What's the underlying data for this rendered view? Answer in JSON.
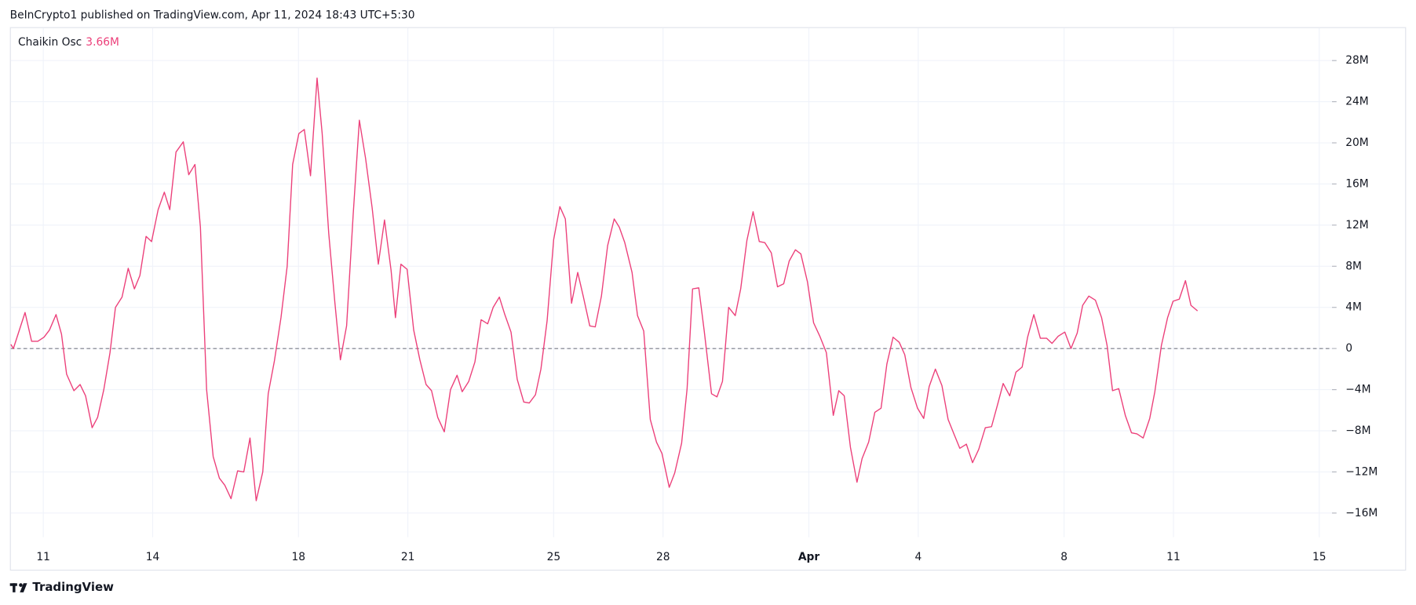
{
  "header": "BeInCrypto1 published on TradingView.com, Apr 11, 2024 18:43 UTC+5:30",
  "brand": "TradingView",
  "chart_data": {
    "type": "line",
    "series": [
      {
        "name": "Chaikin Osc",
        "color": "#ec407a",
        "legend_value_label": "3.66M",
        "values": [
          0.4,
          0,
          3.5,
          0.7,
          0.7,
          1.1,
          1.8,
          3.3,
          1.4,
          -2.5,
          -4.1,
          -3.5,
          -4.6,
          -7.7,
          -6.7,
          -4.0,
          -0.4,
          4.0,
          5.0,
          7.8,
          5.8,
          7.1,
          10.9,
          10.4,
          13.5,
          15.2,
          13.5,
          19.1,
          20.1,
          16.9,
          17.9,
          11.8,
          -4.0,
          -10.5,
          -12.6,
          -13.3,
          -14.6,
          -11.9,
          -12.0,
          -8.7,
          -14.8,
          -12.0,
          -4.4,
          -1.2,
          3.0,
          8.0,
          17.9,
          20.9,
          21.3,
          16.8,
          26.3,
          20.9,
          11.2,
          4.4,
          -1.1,
          2.2,
          13.0,
          22.2,
          18.5,
          13.7,
          8.2,
          12.5,
          7.6,
          3.0,
          8.2,
          7.7,
          1.8,
          -1.1,
          -3.5,
          -4.1,
          -6.7,
          -8.1,
          -4.0,
          -2.6,
          -4.2,
          -3.2,
          -1.3,
          2.8,
          2.4,
          4.0,
          5.0,
          3.3,
          1.6,
          -3.0,
          -5.2,
          -5.3,
          -4.5,
          -2.0,
          2.7,
          10.6,
          13.8,
          12.6,
          4.4,
          7.4,
          5.1,
          2.2,
          2.1,
          5.1,
          10.0,
          12.6,
          11.8,
          10.3,
          7.4,
          3.2,
          1.7,
          -6.9,
          -9.1,
          -10.2,
          -13.5,
          -12.1,
          -9.2,
          -3.9,
          5.8,
          5.9,
          1.7,
          -4.4,
          -4.7,
          -3.2,
          4.0,
          3.2,
          5.8,
          10.5,
          13.3,
          10.4,
          10.3,
          9.3,
          6.0,
          6.3,
          8.5,
          9.6,
          9.2,
          6.5,
          2.5,
          1.2,
          -0.4,
          -6.5,
          -4.1,
          -4.6,
          -9.6,
          -13.0,
          -10.7,
          -9.1,
          -6.2,
          -5.8,
          -1.5,
          1.1,
          0.6,
          -0.6,
          -3.8,
          -5.8,
          -6.8,
          -3.7,
          -2.0,
          -3.6,
          -6.9,
          -8.4,
          -9.7,
          -9.3,
          -11.1,
          -9.8,
          -7.7,
          -7.6,
          -5.4,
          -3.4,
          -4.6,
          -2.3,
          -1.8,
          1.1,
          3.3,
          1.0,
          1.0,
          0.5,
          1.2,
          1.6,
          0,
          1.5,
          4.2,
          5.1,
          4.7,
          3.0,
          0.3,
          -4.1,
          -3.9,
          -6.5,
          -8.2,
          -8.3,
          -8.7,
          -6.8,
          -4.2,
          0.3,
          3.0,
          4.6,
          4.8,
          6.6,
          4.2,
          3.66
        ]
      }
    ],
    "x": [
      -0.89,
      -0.82,
      -0.5,
      -0.32,
      -0.15,
      0.02,
      0.17,
      0.35,
      0.5,
      0.64,
      0.84,
      1.01,
      1.16,
      1.34,
      1.49,
      1.66,
      1.83,
      1.98,
      2.16,
      2.33,
      2.5,
      2.65,
      2.82,
      2.97,
      3.15,
      3.32,
      3.47,
      3.64,
      3.84,
      3.99,
      4.16,
      4.31,
      4.48,
      4.66,
      4.83,
      4.98,
      5.15,
      5.33,
      5.5,
      5.67,
      5.84,
      6.02,
      6.17,
      6.34,
      6.52,
      6.69,
      6.84,
      7.01,
      7.16,
      7.33,
      7.51,
      7.65,
      7.83,
      8.0,
      8.15,
      8.32,
      8.5,
      8.67,
      8.84,
      9.02,
      9.19,
      9.36,
      9.54,
      9.66,
      9.81,
      9.98,
      10.16,
      10.33,
      10.5,
      10.65,
      10.82,
      11.0,
      11.17,
      11.35,
      11.49,
      11.67,
      11.84,
      12.01,
      12.19,
      12.34,
      12.51,
      12.66,
      12.83,
      13.0,
      13.18,
      13.33,
      13.5,
      13.65,
      13.82,
      14.0,
      14.17,
      14.32,
      14.49,
      14.66,
      14.81,
      14.99,
      15.14,
      15.31,
      15.48,
      15.66,
      15.8,
      15.95,
      16.15,
      16.3,
      16.47,
      16.65,
      16.82,
      16.97,
      17.17,
      17.32,
      17.51,
      17.66,
      17.81,
      17.98,
      18.13,
      18.33,
      18.48,
      18.63,
      18.8,
      18.98,
      19.13,
      19.3,
      19.47,
      19.64,
      19.79,
      19.97,
      20.14,
      20.31,
      20.46,
      20.63,
      20.78,
      20.96,
      21.13,
      21.3,
      21.48,
      21.67,
      21.82,
      21.97,
      22.14,
      22.32,
      22.46,
      22.64,
      22.81,
      22.98,
      23.14,
      23.31,
      23.48,
      23.63,
      23.8,
      23.98,
      24.15,
      24.3,
      24.47,
      24.65,
      24.82,
      24.99,
      25.14,
      25.32,
      25.49,
      25.66,
      25.84,
      26.01,
      26.18,
      26.33,
      26.51,
      26.68,
      26.85,
      27.0,
      27.17,
      27.35,
      27.52,
      27.67,
      27.84,
      28.02,
      28.19,
      28.36,
      28.51,
      28.68,
      28.86,
      29.03,
      29.18,
      29.33,
      29.5,
      29.68,
      29.85,
      30.0,
      30.17,
      30.35,
      30.49,
      30.67,
      30.84,
      30.99,
      31.16,
      31.33,
      31.48,
      31.66
    ],
    "xlim": [
      -0.89,
      35.35
    ],
    "xticks": [
      {
        "value": 0,
        "label": "11"
      },
      {
        "value": 3,
        "label": "14"
      },
      {
        "value": 7,
        "label": "18"
      },
      {
        "value": 10,
        "label": "21"
      },
      {
        "value": 14,
        "label": "25"
      },
      {
        "value": 17,
        "label": "28"
      },
      {
        "value": 21,
        "label": "Apr"
      },
      {
        "value": 24,
        "label": "4"
      },
      {
        "value": 28,
        "label": "8"
      },
      {
        "value": 31,
        "label": "11"
      },
      {
        "value": 35,
        "label": "15"
      }
    ],
    "ylim": [
      -18.35,
      31.25
    ],
    "yticks": [
      {
        "value": -16,
        "label": "−16M"
      },
      {
        "value": -12,
        "label": "−12M"
      },
      {
        "value": -8,
        "label": "−8M"
      },
      {
        "value": -4,
        "label": "−4M"
      },
      0,
      {
        "value": 4,
        "label": "4M"
      },
      {
        "value": 8,
        "label": "8M"
      },
      {
        "value": 12,
        "label": "12M"
      },
      {
        "value": 16,
        "label": "16M"
      },
      {
        "value": 20,
        "label": "20M"
      },
      {
        "value": 24,
        "label": "24M"
      },
      {
        "value": 28,
        "label": "28M"
      }
    ],
    "zero_line": 0,
    "grid": true
  }
}
